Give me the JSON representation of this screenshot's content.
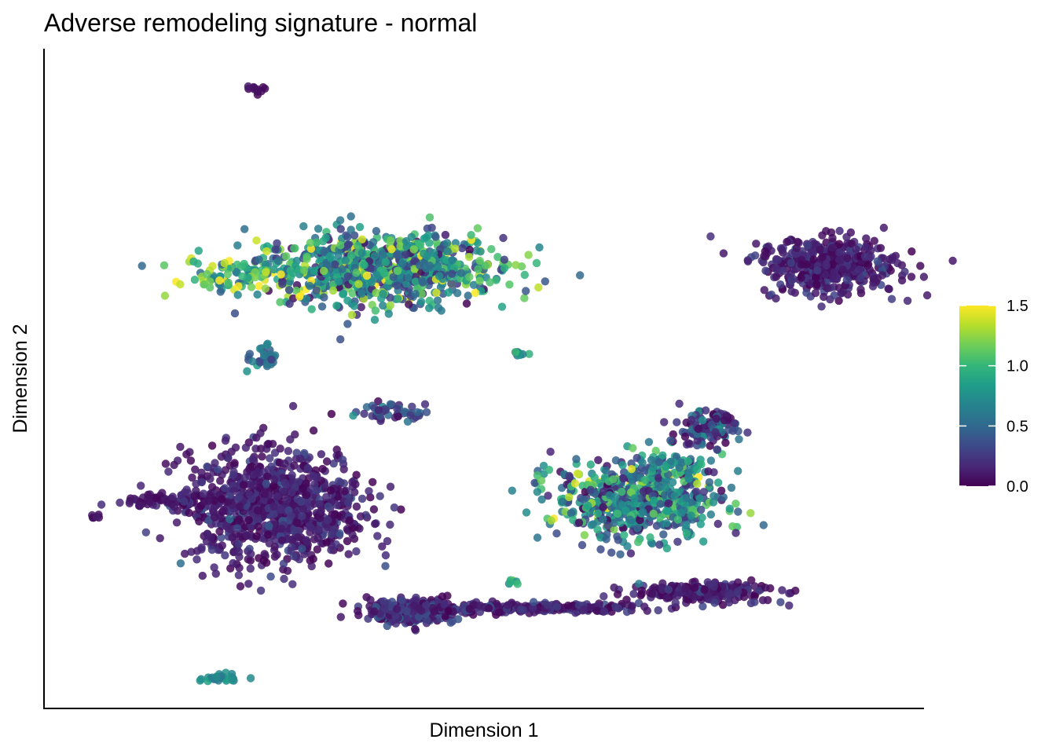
{
  "chart_data": {
    "type": "scatter",
    "title": "Adverse remodeling signature - normal",
    "xlabel": "Dimension 1",
    "ylabel": "Dimension 2",
    "x_ticks": false,
    "y_ticks": false,
    "grid": false,
    "colorbar": {
      "palette": "viridis",
      "range": [
        0.0,
        1.5
      ],
      "ticks": [
        "0.0",
        "0.5",
        "1.0",
        "1.5"
      ],
      "tick_values": [
        0.0,
        0.5,
        1.0,
        1.5
      ],
      "placement": "right"
    },
    "colors": {
      "viridis": [
        "#440154",
        "#482878",
        "#3e4989",
        "#31688e",
        "#26828e",
        "#1f9e89",
        "#35b779",
        "#6ece58",
        "#b5de2b",
        "#fde725"
      ]
    },
    "clusters": [
      {
        "cx": 2.45,
        "cy": 9.85,
        "sx": 0.08,
        "sy": 0.04,
        "n": 12,
        "score": 0.05,
        "spread": 0.04
      },
      {
        "cx": 3.9,
        "cy": 7.0,
        "sx": 0.75,
        "sy": 0.28,
        "n": 900,
        "score": 0.7,
        "spread": 0.38
      },
      {
        "cx": 2.1,
        "cy": 6.9,
        "sx": 0.25,
        "sy": 0.12,
        "n": 60,
        "score": 1.1,
        "spread": 0.35
      },
      {
        "cx": 2.55,
        "cy": 5.55,
        "sx": 0.08,
        "sy": 0.12,
        "n": 30,
        "score": 0.5,
        "spread": 0.15
      },
      {
        "cx": 5.6,
        "cy": 5.65,
        "sx": 0.05,
        "sy": 0.03,
        "n": 10,
        "score": 0.6,
        "spread": 0.2
      },
      {
        "cx": 4.05,
        "cy": 4.72,
        "sx": 0.22,
        "sy": 0.06,
        "n": 50,
        "score": 0.25,
        "spread": 0.2
      },
      {
        "cx": 2.7,
        "cy": 3.2,
        "sx": 0.55,
        "sy": 0.45,
        "n": 900,
        "score": 0.12,
        "spread": 0.12
      },
      {
        "cx": 1.55,
        "cy": 3.3,
        "sx": 0.35,
        "sy": 0.05,
        "n": 90,
        "score": 0.1,
        "spread": 0.08
      },
      {
        "cx": 0.5,
        "cy": 3.05,
        "sx": 0.03,
        "sy": 0.02,
        "n": 6,
        "score": 0.05,
        "spread": 0.03
      },
      {
        "cx": 2.05,
        "cy": 0.5,
        "sx": 0.15,
        "sy": 0.04,
        "n": 25,
        "score": 0.7,
        "spread": 0.08
      },
      {
        "cx": 7.05,
        "cy": 3.35,
        "sx": 0.5,
        "sy": 0.32,
        "n": 650,
        "score": 0.6,
        "spread": 0.38
      },
      {
        "cx": 7.85,
        "cy": 4.45,
        "sx": 0.2,
        "sy": 0.14,
        "n": 120,
        "score": 0.25,
        "spread": 0.25
      },
      {
        "cx": 7.5,
        "cy": 3.85,
        "sx": 0.15,
        "sy": 0.12,
        "n": 40,
        "score": 0.8,
        "spread": 0.3
      },
      {
        "cx": 9.35,
        "cy": 7.05,
        "sx": 0.42,
        "sy": 0.22,
        "n": 450,
        "score": 0.12,
        "spread": 0.1
      },
      {
        "cx": 4.35,
        "cy": 1.55,
        "sx": 0.28,
        "sy": 0.1,
        "n": 260,
        "score": 0.2,
        "spread": 0.15
      },
      {
        "cx": 5.6,
        "cy": 1.6,
        "sx": 0.75,
        "sy": 0.04,
        "n": 200,
        "score": 0.12,
        "spread": 0.12
      },
      {
        "cx": 7.8,
        "cy": 1.85,
        "sx": 0.42,
        "sy": 0.07,
        "n": 250,
        "score": 0.12,
        "spread": 0.12
      },
      {
        "cx": 6.6,
        "cy": 1.6,
        "sx": 0.3,
        "sy": 0.03,
        "n": 30,
        "score": 0.1,
        "spread": 0.08
      },
      {
        "cx": 5.55,
        "cy": 2.0,
        "sx": 0.04,
        "sy": 0.03,
        "n": 6,
        "score": 0.9,
        "spread": 0.2
      }
    ],
    "xlim": [
      -0.1,
      10.5
    ],
    "ylim": [
      0.0,
      10.5
    ]
  }
}
